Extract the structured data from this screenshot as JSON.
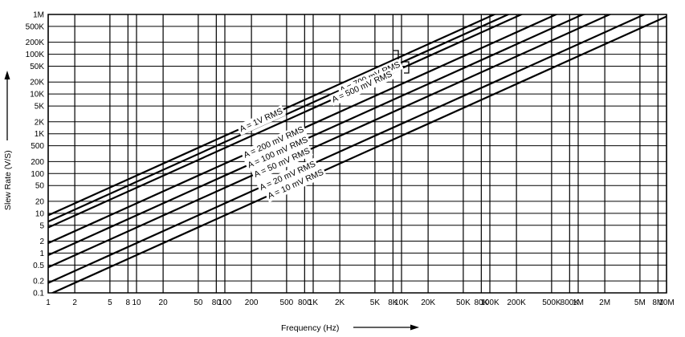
{
  "chart_data": {
    "type": "line",
    "xscale": "log",
    "yscale": "log",
    "xlim": [
      1,
      10000000
    ],
    "ylim": [
      0.1,
      1000000
    ],
    "grid": true,
    "xlabel": "Frequency (Hz)",
    "ylabel": "Slew Rate (V/S)",
    "x_ticks": [
      {
        "v": 1,
        "label": "1"
      },
      {
        "v": 2,
        "label": "2"
      },
      {
        "v": 5,
        "label": "5"
      },
      {
        "v": 8,
        "label": "8"
      },
      {
        "v": 10,
        "label": "10"
      },
      {
        "v": 20,
        "label": "20"
      },
      {
        "v": 50,
        "label": "50"
      },
      {
        "v": 80,
        "label": "80"
      },
      {
        "v": 100,
        "label": "100"
      },
      {
        "v": 200,
        "label": "200"
      },
      {
        "v": 500,
        "label": "500"
      },
      {
        "v": 800,
        "label": "800"
      },
      {
        "v": 1000,
        "label": "1K"
      },
      {
        "v": 2000,
        "label": "2K"
      },
      {
        "v": 5000,
        "label": "5K"
      },
      {
        "v": 8000,
        "label": "8K"
      },
      {
        "v": 10000,
        "label": "10K"
      },
      {
        "v": 20000,
        "label": "20K"
      },
      {
        "v": 50000,
        "label": "50K"
      },
      {
        "v": 80000,
        "label": "80K"
      },
      {
        "v": 100000,
        "label": "100K"
      },
      {
        "v": 200000,
        "label": "200K"
      },
      {
        "v": 500000,
        "label": "500K"
      },
      {
        "v": 800000,
        "label": "800K"
      },
      {
        "v": 1000000,
        "label": "1M"
      },
      {
        "v": 2000000,
        "label": "2M"
      },
      {
        "v": 5000000,
        "label": "5M"
      },
      {
        "v": 8000000,
        "label": "8M"
      },
      {
        "v": 10000000,
        "label": "10M"
      }
    ],
    "y_ticks": [
      {
        "v": 0.1,
        "label": "0.1"
      },
      {
        "v": 0.2,
        "label": "0.2"
      },
      {
        "v": 0.5,
        "label": "0.5"
      },
      {
        "v": 1,
        "label": "1"
      },
      {
        "v": 2,
        "label": "2"
      },
      {
        "v": 5,
        "label": "5"
      },
      {
        "v": 10,
        "label": "10"
      },
      {
        "v": 20,
        "label": "20"
      },
      {
        "v": 50,
        "label": "50"
      },
      {
        "v": 100,
        "label": "100"
      },
      {
        "v": 200,
        "label": "200"
      },
      {
        "v": 500,
        "label": "500"
      },
      {
        "v": 1000,
        "label": "1K"
      },
      {
        "v": 2000,
        "label": "2K"
      },
      {
        "v": 5000,
        "label": "5K"
      },
      {
        "v": 10000,
        "label": "10K"
      },
      {
        "v": 20000,
        "label": "20K"
      },
      {
        "v": 50000,
        "label": "50K"
      },
      {
        "v": 100000,
        "label": "100K"
      },
      {
        "v": 200000,
        "label": "200K"
      },
      {
        "v": 500000,
        "label": "500K"
      },
      {
        "v": 1000000,
        "label": "1M"
      }
    ],
    "series": [
      {
        "name": "A = 1V RMS",
        "y_at_1hz": 8.9
      },
      {
        "name": "A = 700 mV RMS",
        "y_at_1hz": 6.2
      },
      {
        "name": "A = 500 mV RMS",
        "y_at_1hz": 4.4
      },
      {
        "name": "A = 200 mV RMS",
        "y_at_1hz": 1.78
      },
      {
        "name": "A = 100 mV RMS",
        "y_at_1hz": 0.89
      },
      {
        "name": "A = 50 mV RMS",
        "y_at_1hz": 0.44
      },
      {
        "name": "A = 20 mV RMS",
        "y_at_1hz": 0.178
      },
      {
        "name": "A = 10 mV RMS",
        "y_at_1hz": 0.089
      }
    ]
  }
}
